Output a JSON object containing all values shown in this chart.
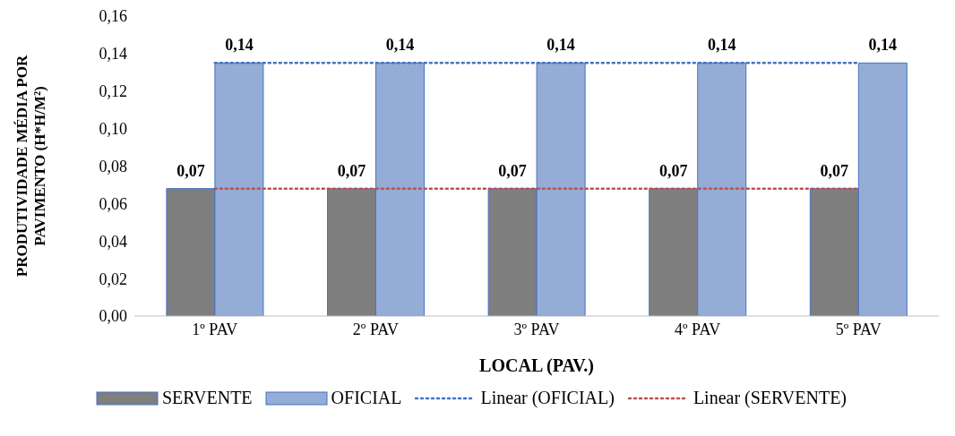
{
  "chart_data": {
    "type": "bar",
    "xlabel": "LOCAL (PAV.)",
    "ylabel": "PRODUTIVIDADE MÉDIA POR\nPAVIMENTO (H*H/M²)",
    "categories": [
      "1º PAV",
      "2º PAV",
      "3º PAV",
      "4º PAV",
      "5º PAV"
    ],
    "series": [
      {
        "name": "SERVENTE",
        "color": "#7f7f7f",
        "values": [
          0.068,
          0.068,
          0.068,
          0.068,
          0.068
        ],
        "value_labels": [
          "0,07",
          "0,07",
          "0,07",
          "0,07",
          "0,07"
        ]
      },
      {
        "name": "OFICIAL",
        "color": "#95acd6",
        "values": [
          0.135,
          0.135,
          0.135,
          0.135,
          0.135
        ],
        "value_labels": [
          "0,14",
          "0,14",
          "0,14",
          "0,14",
          "0,14"
        ]
      },
      {
        "name": "Linear (OFICIAL)",
        "type": "line",
        "color": "#4472c4",
        "line_style": "dotted",
        "values": [
          0.135,
          0.135,
          0.135,
          0.135,
          0.135
        ]
      },
      {
        "name": "Linear (SERVENTE)",
        "type": "line",
        "color": "#c0504d",
        "line_style": "dotted",
        "values": [
          0.068,
          0.068,
          0.068,
          0.068,
          0.068
        ]
      }
    ],
    "ylim": [
      0,
      0.16
    ],
    "yticks": [
      {
        "value": 0,
        "label": "0,00"
      },
      {
        "value": 0.02,
        "label": "0,02"
      },
      {
        "value": 0.04,
        "label": "0,04"
      },
      {
        "value": 0.06,
        "label": "0,06"
      },
      {
        "value": 0.08,
        "label": "0,08"
      },
      {
        "value": 0.1,
        "label": "0,10"
      },
      {
        "value": 0.12,
        "label": "0,12"
      },
      {
        "value": 0.14,
        "label": "0,14"
      },
      {
        "value": 0.16,
        "label": "0,16"
      }
    ],
    "grid": false,
    "legend": "bottom",
    "marker": "none"
  }
}
